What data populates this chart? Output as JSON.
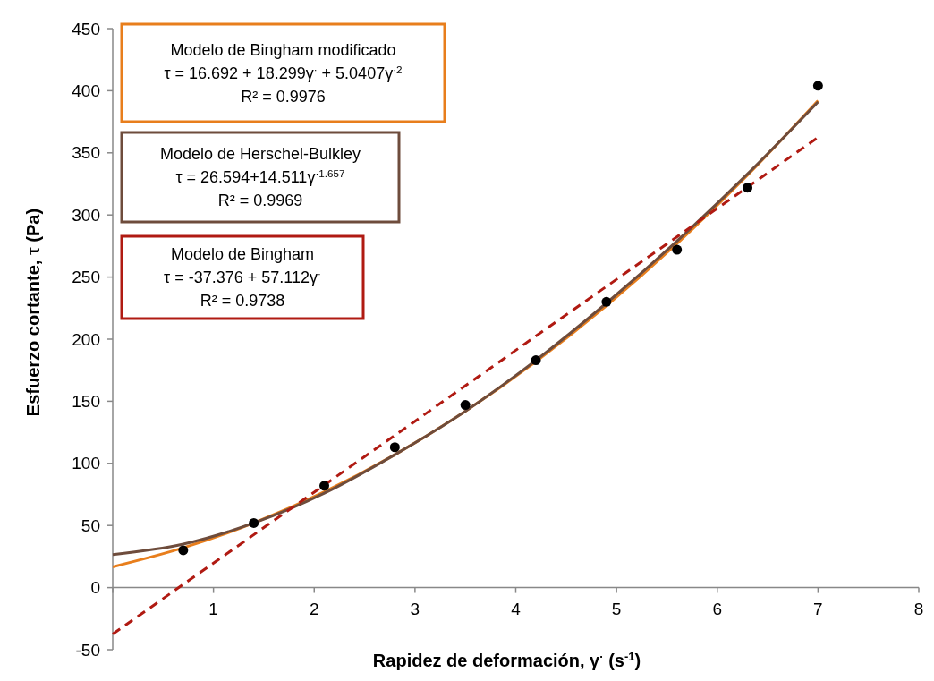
{
  "chart_data": {
    "type": "scatter",
    "xlabel": "Rapidez de deformación, γ$^{·}$ (s$^{-1}$)",
    "ylabel": "Esfuerzo cortante, τ (Pa)",
    "xlim": [
      0,
      8
    ],
    "ylim": [
      -50,
      450
    ],
    "xticks": [
      {
        "value": 0,
        "label": null
      },
      1,
      2,
      3,
      4,
      5,
      6,
      7,
      8
    ],
    "yticks": [
      -50,
      0,
      50,
      100,
      150,
      200,
      250,
      300,
      350,
      400,
      450
    ],
    "grid": false,
    "series": [
      {
        "color": "#000000",
        "marker": "circle",
        "x": [
          0.7,
          1.4,
          2.1,
          2.8,
          3.5,
          4.2,
          4.9,
          5.6,
          6.3,
          7.0
        ],
        "values": [
          30,
          52,
          82,
          113,
          147,
          183,
          230,
          272,
          322,
          404
        ]
      },
      {
        "type": "line",
        "color": "#e87e1c",
        "marker": "none",
        "line_style": "solid",
        "x": [
          0,
          0.7,
          1.4,
          2.1,
          2.8,
          3.5,
          4.2,
          4.9,
          5.6,
          6.3,
          7.0
        ],
        "values": [
          16.7,
          32,
          52,
          77,
          107,
          142,
          182,
          227,
          277,
          332,
          392
        ]
      },
      {
        "type": "line",
        "color": "#6e4c3c",
        "marker": "none",
        "line_style": "solid",
        "x": [
          0,
          0.7,
          1.4,
          2.1,
          2.8,
          3.5,
          4.2,
          4.9,
          5.6,
          6.3,
          7.0
        ],
        "values": [
          26.6,
          35,
          52,
          76,
          107,
          142,
          183,
          229,
          279,
          333,
          391
        ]
      },
      {
        "type": "line",
        "color": "#b01a12",
        "marker": "none",
        "line_style": "dashed",
        "x": [
          0,
          7
        ],
        "values": [
          -37.4,
          362.4
        ]
      }
    ],
    "annotations": [
      "Modelo de Bingham modificado\nτ = 16.692 + 18.299γ$^{·}$ + 5.0407γ$^{·2}$\nR² = 0.9976",
      "Modelo de Herschel-Bulkley\nτ = 26.594+14.511γ$^{·1.657}$\nR² = 0.9969",
      "Modelo de Bingham\nτ = -37.376 + 57.112γ$^{·}$\nR² = 0.9738"
    ]
  }
}
